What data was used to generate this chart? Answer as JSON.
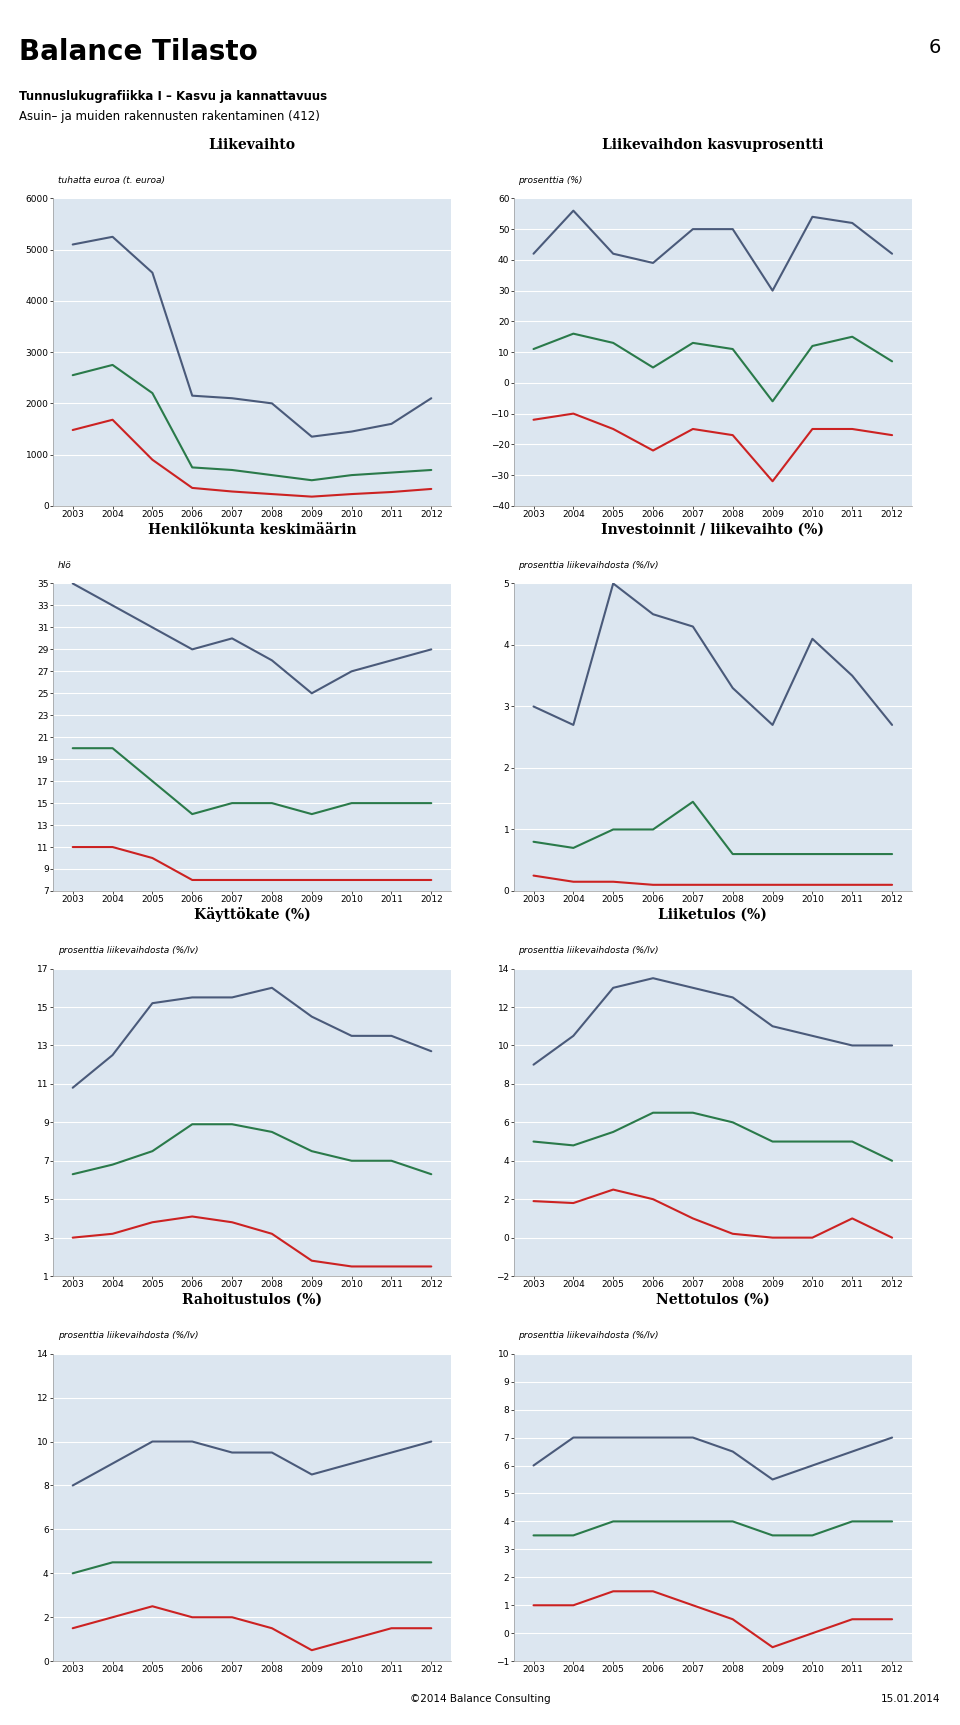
{
  "page_title": "Balance Tilasto",
  "page_number": "6",
  "subtitle1": "Tunnuslukugrafiikka I – Kasvu ja kannattavuus",
  "subtitle2": "Asuin– ja muiden rakennusten rakentaminen (412)",
  "footer": "©2014 Balance Consulting",
  "footer_right": "15.01.2014",
  "years": [
    2003,
    2004,
    2005,
    2006,
    2007,
    2008,
    2009,
    2010,
    2011,
    2012
  ],
  "colors": {
    "blue": "#4a5a7a",
    "green": "#2a7a4a",
    "red": "#cc2222",
    "bg": "#dce6f0"
  },
  "charts": {
    "liikevaihto": {
      "title": "Liikevaihto",
      "ylabel": "tuhatta euroa (t. euroa)",
      "ylim": [
        0,
        6000
      ],
      "yticks": [
        0,
        1000,
        2000,
        3000,
        4000,
        5000,
        6000
      ],
      "blue": [
        5100,
        5250,
        4550,
        2150,
        2100,
        2000,
        1350,
        1450,
        1600,
        2100
      ],
      "green": [
        2550,
        2750,
        2200,
        750,
        700,
        600,
        500,
        600,
        650,
        700
      ],
      "red": [
        1480,
        1680,
        900,
        350,
        280,
        230,
        180,
        230,
        270,
        330
      ]
    },
    "liikevaihdon_kasvu": {
      "title": "Liikevaihdon kasvuprosentti",
      "ylabel": "prosenttia (%)",
      "ylim": [
        -40,
        60
      ],
      "yticks": [
        -40,
        -30,
        -20,
        -10,
        0,
        10,
        20,
        30,
        40,
        50,
        60
      ],
      "blue": [
        42,
        56,
        42,
        39,
        50,
        50,
        30,
        54,
        52,
        42
      ],
      "green": [
        11,
        16,
        13,
        5,
        13,
        11,
        -6,
        12,
        15,
        7
      ],
      "red": [
        -12,
        -10,
        -15,
        -22,
        -15,
        -17,
        -32,
        -15,
        -15,
        -17
      ]
    },
    "henkilokunta": {
      "title": "Henkilökunta keskimäärin",
      "ylabel": "hlö",
      "ylim": [
        7,
        35
      ],
      "yticks": [
        7,
        9,
        11,
        13,
        15,
        17,
        19,
        21,
        23,
        25,
        27,
        29,
        31,
        33,
        35
      ],
      "blue": [
        35,
        33,
        31,
        29,
        30,
        28,
        25,
        27,
        28,
        29
      ],
      "green": [
        20,
        20,
        17,
        14,
        15,
        15,
        14,
        15,
        15,
        15
      ],
      "red": [
        11,
        11,
        10,
        8,
        8,
        8,
        8,
        8,
        8,
        8
      ]
    },
    "investoinnit": {
      "title": "Investoinnit / liikevaihto (%)",
      "ylabel": "prosenttia liikevaihdosta (%/lv)",
      "ylim": [
        0,
        5
      ],
      "yticks": [
        0,
        1,
        2,
        3,
        4,
        5
      ],
      "blue": [
        3.0,
        2.7,
        5.0,
        4.5,
        4.3,
        3.3,
        2.7,
        4.1,
        3.5,
        2.7
      ],
      "green": [
        0.8,
        0.7,
        1.0,
        1.0,
        1.45,
        0.6,
        0.6,
        0.6,
        0.6,
        0.6
      ],
      "red": [
        0.25,
        0.15,
        0.15,
        0.1,
        0.1,
        0.1,
        0.1,
        0.1,
        0.1,
        0.1
      ]
    },
    "kayttokate": {
      "title": "Käyttökate (%)",
      "ylabel": "prosenttia liikevaihdosta (%/lv)",
      "ylim": [
        1,
        17
      ],
      "yticks": [
        1,
        3,
        5,
        7,
        9,
        11,
        13,
        15,
        17
      ],
      "blue": [
        10.8,
        12.5,
        15.2,
        15.5,
        15.5,
        16.0,
        14.5,
        13.5,
        13.5,
        12.7
      ],
      "green": [
        6.3,
        6.8,
        7.5,
        8.9,
        8.9,
        8.5,
        7.5,
        7.0,
        7.0,
        6.3
      ],
      "red": [
        3.0,
        3.2,
        3.8,
        4.1,
        3.8,
        3.2,
        1.8,
        1.5,
        1.5,
        1.5
      ]
    },
    "liiketulos": {
      "title": "Liiketulos (%)",
      "ylabel": "prosenttia liikevaihdosta (%/lv)",
      "ylim": [
        -2,
        14
      ],
      "yticks": [
        -2,
        0,
        2,
        4,
        6,
        8,
        10,
        12,
        14
      ],
      "blue": [
        9.0,
        10.5,
        13.0,
        13.5,
        13.0,
        12.5,
        11.0,
        10.5,
        10.0,
        10.0
      ],
      "green": [
        5.0,
        4.8,
        5.5,
        6.5,
        6.5,
        6.0,
        5.0,
        5.0,
        5.0,
        4.0
      ],
      "red": [
        1.9,
        1.8,
        2.5,
        2.0,
        1.0,
        0.2,
        0.0,
        0.0,
        1.0,
        0.0
      ]
    },
    "rahoitustulos": {
      "title": "Rahoitustulos (%)",
      "ylabel": "prosenttia liikevaihdosta (%/lv)",
      "ylim": [
        0,
        14
      ],
      "yticks": [
        0,
        2,
        4,
        6,
        8,
        10,
        12,
        14
      ],
      "blue": [
        8.0,
        9.0,
        10.0,
        10.0,
        9.5,
        9.5,
        8.5,
        9.0,
        9.5,
        10.0
      ],
      "green": [
        4.0,
        4.5,
        4.5,
        4.5,
        4.5,
        4.5,
        4.5,
        4.5,
        4.5,
        4.5
      ],
      "red": [
        1.5,
        2.0,
        2.5,
        2.0,
        2.0,
        1.5,
        0.5,
        1.0,
        1.5,
        1.5
      ]
    },
    "nettotulos": {
      "title": "Nettotulos (%)",
      "ylabel": "prosenttia liikevaihdosta (%/lv)",
      "ylim": [
        -1,
        10
      ],
      "yticks": [
        -1,
        0,
        1,
        2,
        3,
        4,
        5,
        6,
        7,
        8,
        9,
        10
      ],
      "blue": [
        6.0,
        7.0,
        7.0,
        7.0,
        7.0,
        6.5,
        5.5,
        6.0,
        6.5,
        7.0
      ],
      "green": [
        3.5,
        3.5,
        4.0,
        4.0,
        4.0,
        4.0,
        3.5,
        3.5,
        4.0,
        4.0
      ],
      "red": [
        1.0,
        1.0,
        1.5,
        1.5,
        1.0,
        0.5,
        -0.5,
        0.0,
        0.5,
        0.5
      ]
    }
  }
}
